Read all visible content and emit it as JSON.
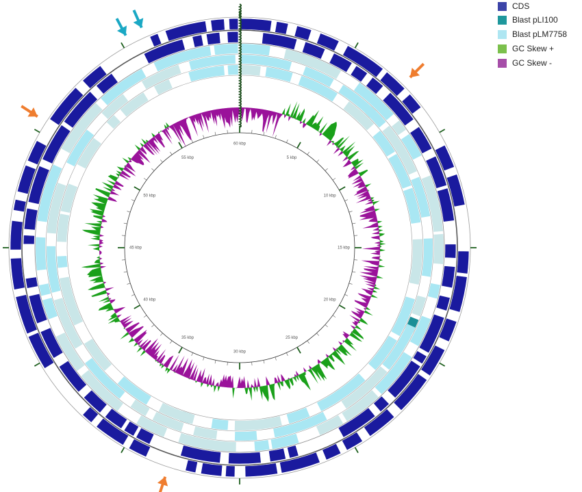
{
  "colors": {
    "cds": "#1a1a9e",
    "blast_pli100": "#1b8e96",
    "blast_plm7758": "#a9e7f3",
    "gc_skew_plus": "#1aa01a",
    "gc_skew_minus": "#9a129a",
    "arrow_orange": "#ef7d2f",
    "arrow_cyan": "#1aa8c4",
    "tick": "#1c5e1c"
  },
  "legend": [
    {
      "label": "CDS",
      "color": "#3c44a8"
    },
    {
      "label": "Blast pLI100",
      "color": "#1e979c"
    },
    {
      "label": "Blast pLM7758",
      "color": "#aee6f2"
    },
    {
      "label": "GC Skew +",
      "color": "#7bc04c"
    },
    {
      "label": "GC Skew -",
      "color": "#a64ea8"
    }
  ],
  "ruler": {
    "unit": "kbp",
    "total_kbp": 60,
    "labels": [
      "60 kbp",
      "5 kbp",
      "10 kbp",
      "15 kbp",
      "20 kbp",
      "25 kbp",
      "30 kbp",
      "35 kbp",
      "40 kbp",
      "45 kbp",
      "50 kbp",
      "55 kbp"
    ]
  },
  "annotation_arrows": [
    {
      "color": "orange",
      "position_kbp": 7.5
    },
    {
      "color": "orange",
      "position_kbp": 33.0
    },
    {
      "color": "orange",
      "position_kbp": 50.5
    },
    {
      "color": "cyan",
      "position_kbp": 55.3
    },
    {
      "color": "cyan",
      "position_kbp": 56.0
    }
  ]
}
